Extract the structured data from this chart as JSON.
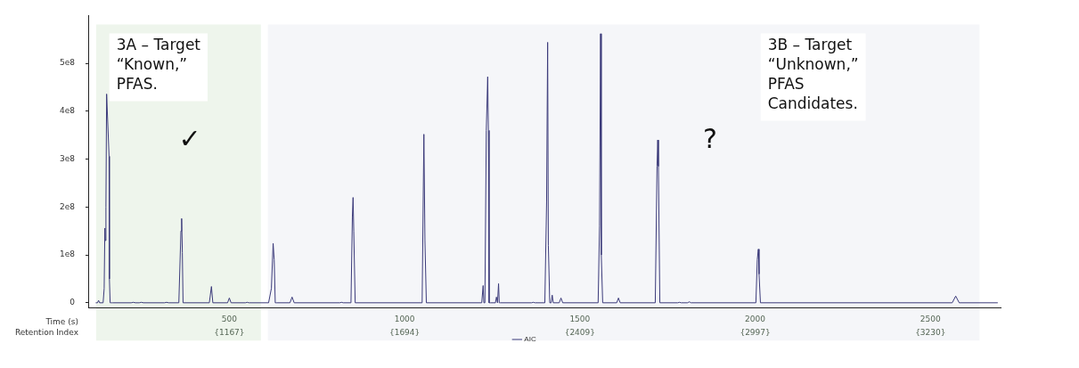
{
  "chart_data": {
    "type": "line",
    "xlabel": "Time (s)",
    "xlim": [
      100,
      2700
    ],
    "xticks": [
      500,
      1000,
      1500,
      2000,
      2500
    ],
    "ylim": [
      -10000000,
      600000000
    ],
    "yticks": [
      0,
      {
        "value": 100000000,
        "label": "1e8"
      },
      {
        "value": 200000000,
        "label": "2e8"
      },
      {
        "value": 300000000,
        "label": "3e8"
      },
      {
        "value": 400000000,
        "label": "4e8"
      },
      {
        "value": 500000000,
        "label": "5e8"
      }
    ],
    "bands": [
      {
        "axis": "x",
        "from": 120,
        "to": 590,
        "label": "3A – Target\n“Known,”\nPFAS.",
        "color": "#eef5ec"
      },
      {
        "axis": "x",
        "from": 610,
        "to": 2640,
        "label": "3B – Target\n“Unknown,”\nPFAS\nCandidates.",
        "color": "#f5f6f9"
      }
    ],
    "annotations": [
      "✓",
      "?",
      "Retention Index",
      "{1167}",
      "{1694}",
      "{2409}",
      "{2997}",
      "{3230}"
    ],
    "legend": "bottom",
    "series": [
      {
        "name": "AIC",
        "color": "#3b3a7a",
        "x": [
          119,
          124,
          127,
          130,
          140,
          143,
          145,
          146,
          148,
          150,
          157,
          158,
          160,
          162,
          164,
          167,
          220,
          226,
          232,
          243,
          249,
          255,
          315,
          321,
          327,
          356,
          362,
          364,
          366,
          368,
          372,
          443,
          449,
          453,
          495,
          500,
          505,
          546,
          551,
          556,
          612,
          620,
          625,
          628,
          631,
          635,
          673,
          679,
          685,
          815,
          820,
          825,
          847,
          851,
          853,
          855,
          859,
          1050,
          1055,
          1058,
          1062,
          1220,
          1224,
          1226,
          1229,
          1233,
          1237,
          1239,
          1241,
          1245,
          1259,
          1262,
          1265,
          1268,
          1270,
          1273,
          1362,
          1367,
          1372,
          1400,
          1405,
          1408,
          1410,
          1414,
          1418,
          1421,
          1424,
          1441,
          1446,
          1451,
          1552,
          1556,
          1559,
          1561,
          1565,
          1605,
          1610,
          1615,
          1715,
          1720,
          1722,
          1724,
          1728,
          1779,
          1784,
          1789,
          1807,
          1812,
          1817,
          2002,
          2006,
          2009,
          2011,
          2015,
          2562,
          2572,
          2582,
          2692
        ],
        "values": [
          0,
          0,
          5000000,
          0,
          0,
          30000000,
          156000000,
          130000000,
          200000000,
          436000000,
          306000000,
          50000000,
          0,
          0,
          0,
          0,
          0,
          1000000,
          0,
          0,
          1000000,
          0,
          0,
          1000000,
          0,
          0,
          150000000,
          176000000,
          105000000,
          0,
          0,
          0,
          34000000,
          0,
          0,
          10000000,
          0,
          0,
          1000000,
          0,
          0,
          30000000,
          124000000,
          90000000,
          0,
          0,
          0,
          12000000,
          0,
          0,
          1000000,
          0,
          0,
          180000000,
          220000000,
          150000000,
          0,
          0,
          352000000,
          130000000,
          0,
          0,
          36000000,
          0,
          0,
          360000000,
          472000000,
          360000000,
          0,
          0,
          0,
          12000000,
          0,
          40000000,
          0,
          0,
          0,
          1000000,
          0,
          0,
          210000000,
          544000000,
          120000000,
          0,
          0,
          16000000,
          0,
          0,
          10000000,
          0,
          0,
          160000000,
          562000000,
          100000000,
          0,
          0,
          10000000,
          0,
          0,
          285000000,
          340000000,
          285000000,
          0,
          0,
          1000000,
          0,
          0,
          2000000,
          0,
          0,
          90000000,
          112000000,
          60000000,
          0,
          0,
          14000000,
          0,
          0
        ]
      }
    ]
  }
}
